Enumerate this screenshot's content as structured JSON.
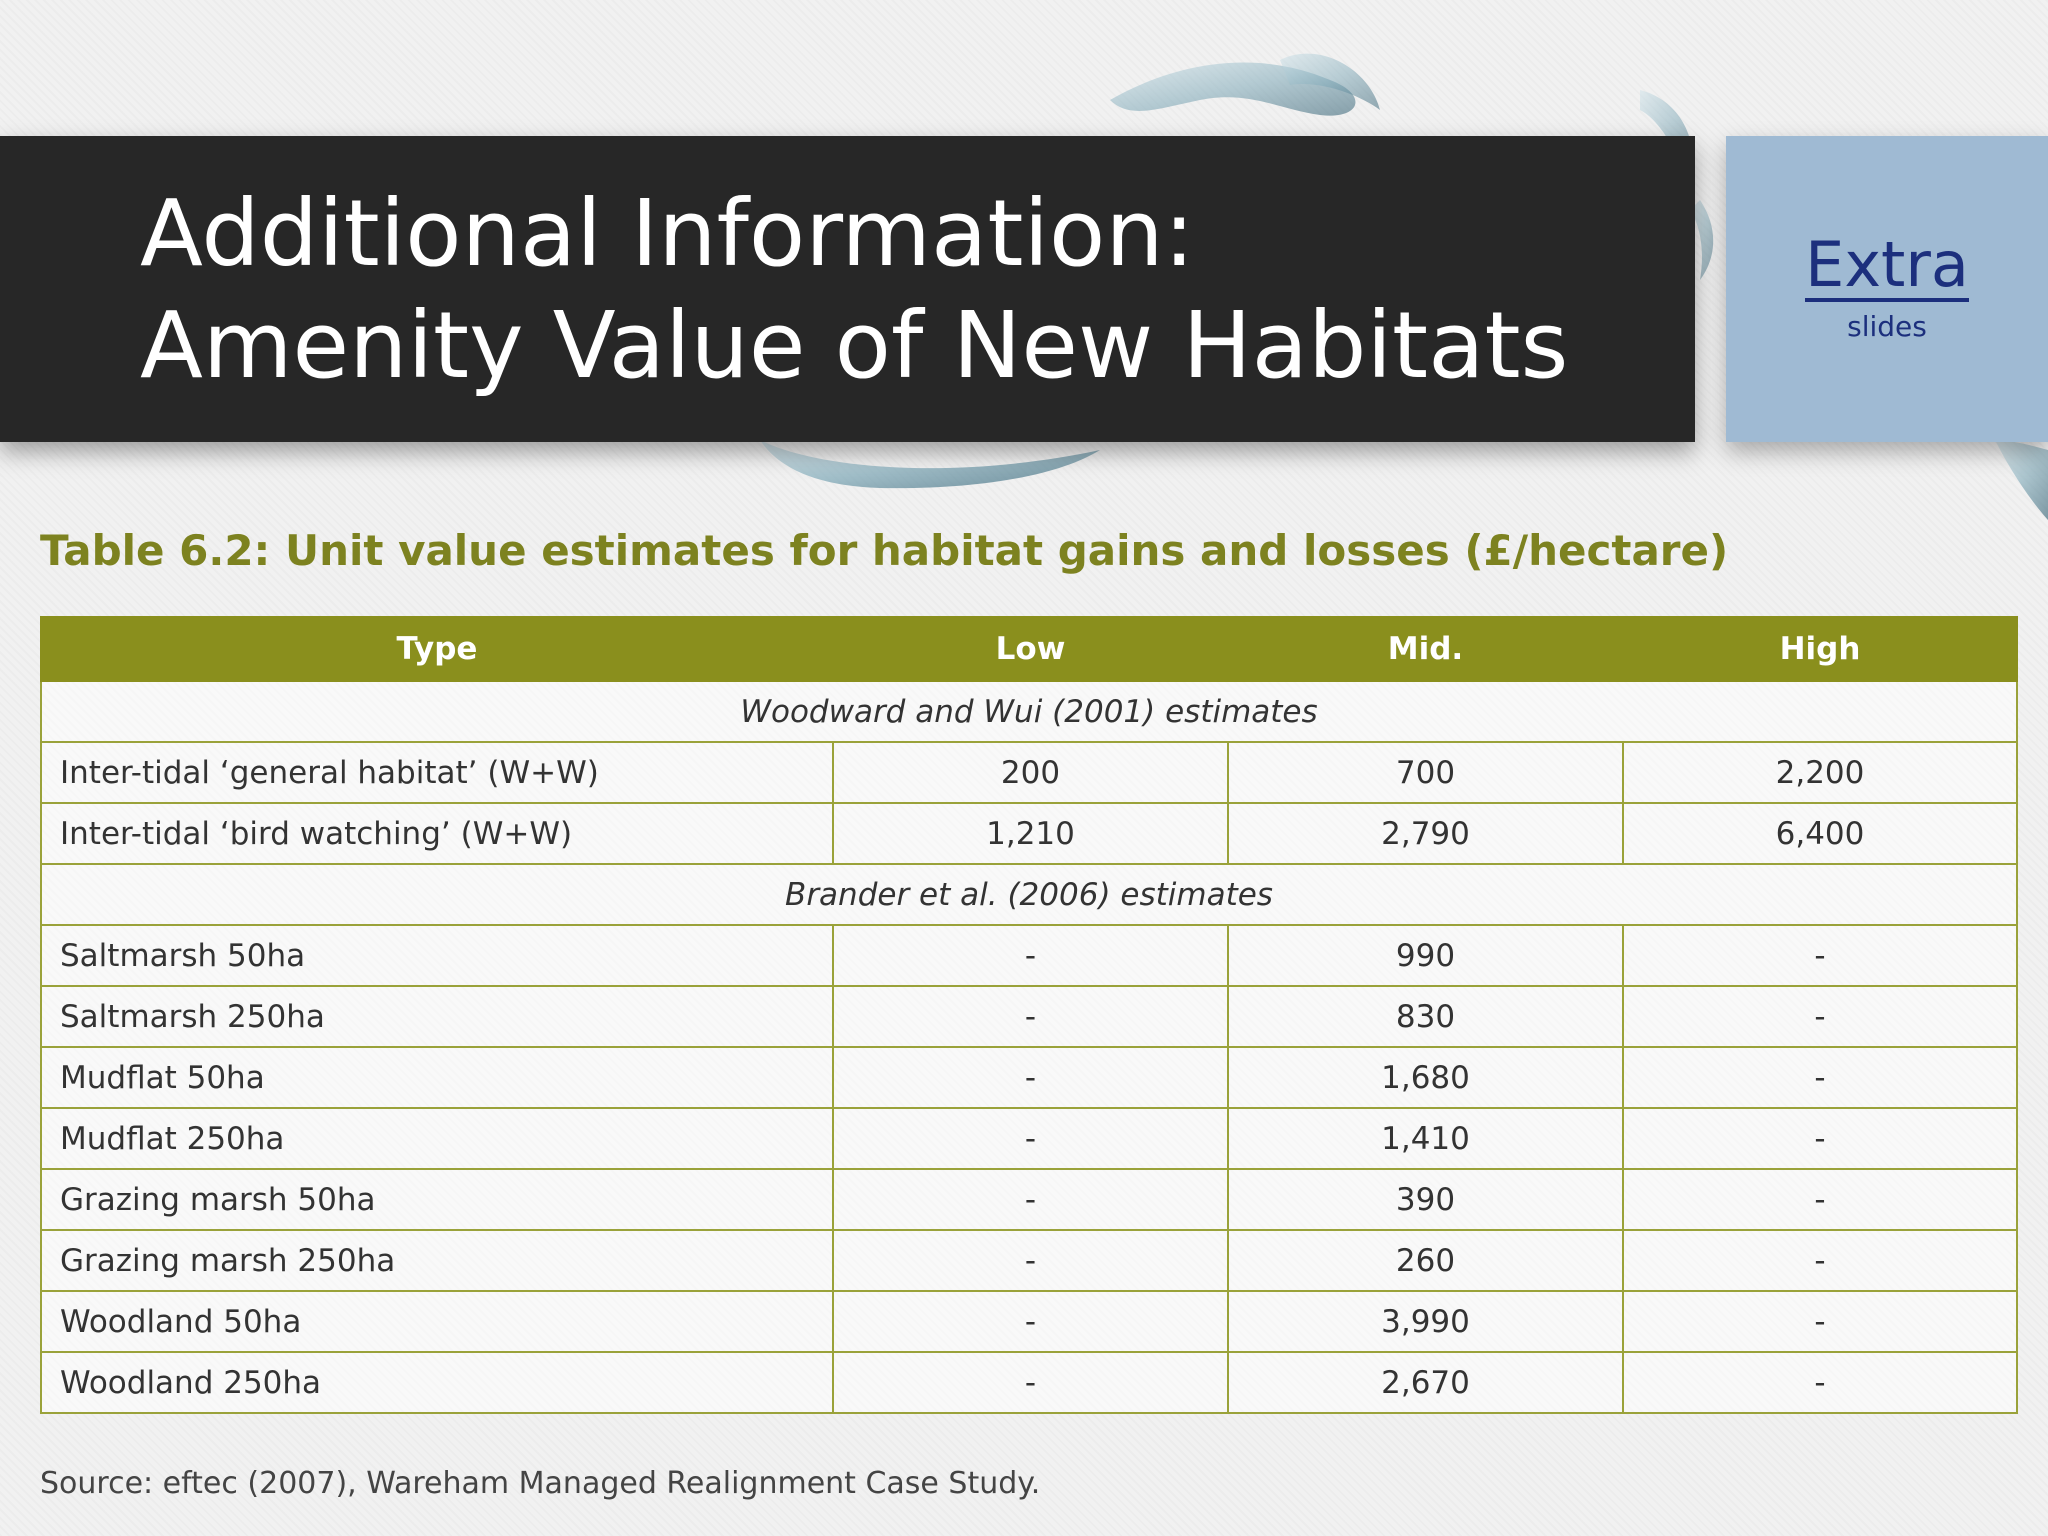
{
  "slide": {
    "title_line1": "Additional Information:",
    "title_line2": "Amenity Value of New Habitats",
    "extra_label": "Extra",
    "extra_sub": "slides"
  },
  "table": {
    "caption": "Table 6.2: Unit value estimates for habitat gains and losses (£/hectare)",
    "headers": [
      "Type",
      "Low",
      "Mid.",
      "High"
    ],
    "groups": [
      {
        "label": "Woodward and Wui (2001) estimates",
        "rows": [
          [
            "Inter-tidal ‘general habitat’ (W+W)",
            "200",
            "700",
            "2,200"
          ],
          [
            "Inter-tidal ‘bird watching’ (W+W)",
            "1,210",
            "2,790",
            "6,400"
          ]
        ]
      },
      {
        "label": "Brander et al. (2006) estimates",
        "rows": [
          [
            "Saltmarsh 50ha",
            "-",
            "990",
            "-"
          ],
          [
            "Saltmarsh 250ha",
            "-",
            "830",
            "-"
          ],
          [
            "Mudflat 50ha",
            "-",
            "1,680",
            "-"
          ],
          [
            "Mudflat 250ha",
            "-",
            "1,410",
            "-"
          ],
          [
            "Grazing marsh 50ha",
            "-",
            "390",
            "-"
          ],
          [
            "Grazing marsh 250ha",
            "-",
            "260",
            "-"
          ],
          [
            "Woodland 50ha",
            "-",
            "3,990",
            "-"
          ],
          [
            "Woodland 250ha",
            "-",
            "2,670",
            "-"
          ]
        ]
      }
    ],
    "source": "Source: eftec (2007), Wareham Managed Realignment Case Study."
  },
  "colors": {
    "title_bar": "#272727",
    "extra_box": "#9fbad3",
    "table_header": "#8a8f1d",
    "caption": "#7d8220"
  }
}
